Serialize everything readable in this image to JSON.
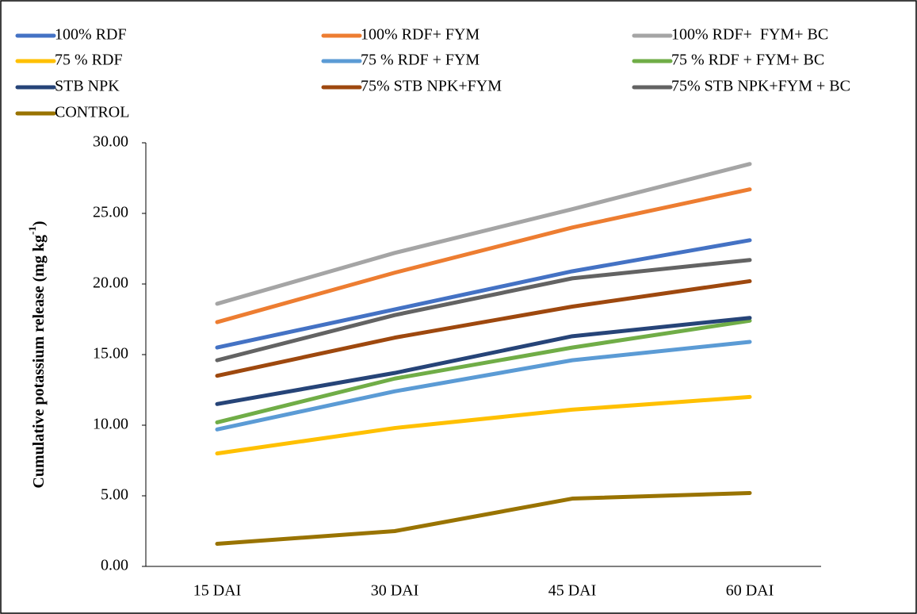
{
  "chart_data": {
    "type": "line",
    "y_label": {
      "text": "Cumulative potassium release (mg kg",
      "superscript": "-1",
      "close": ")"
    },
    "categories": [
      "15 DAI",
      "30 DAI",
      "45 DAI",
      "60 DAI"
    ],
    "series": [
      {
        "name": "100% RDF",
        "color": "#4472c4",
        "values": [
          15.5,
          18.2,
          20.9,
          23.1
        ]
      },
      {
        "name": "100% RDF+ FYM",
        "color": "#ed7d31",
        "values": [
          17.3,
          20.8,
          24.0,
          26.7
        ]
      },
      {
        "name": "100% RDF+  FYM+ BC",
        "color": "#a5a5a5",
        "values": [
          18.6,
          22.2,
          25.3,
          28.5
        ]
      },
      {
        "name": "75 % RDF",
        "color": "#ffc000",
        "values": [
          8.0,
          9.8,
          11.1,
          12.0
        ]
      },
      {
        "name": "75 % RDF + FYM",
        "color": "#5b9bd5",
        "values": [
          9.7,
          12.4,
          14.6,
          15.9
        ]
      },
      {
        "name": "75 % RDF + FYM+ BC",
        "color": "#70ad47",
        "values": [
          10.2,
          13.3,
          15.5,
          17.4
        ]
      },
      {
        "name": "STB NPK",
        "color": "#264478",
        "values": [
          11.5,
          13.7,
          16.3,
          17.6
        ]
      },
      {
        "name": "75% STB NPK+FYM",
        "color": "#9e480e",
        "values": [
          13.5,
          16.2,
          18.4,
          20.2
        ]
      },
      {
        "name": "75% STB NPK+FYM + BC",
        "color": "#636363",
        "values": [
          14.6,
          17.8,
          20.4,
          21.7
        ]
      },
      {
        "name": "CONTROL",
        "color": "#997300",
        "values": [
          1.6,
          2.5,
          4.8,
          5.2
        ]
      }
    ],
    "ylim": [
      0,
      30
    ],
    "yticks": [
      {
        "value": 0,
        "label": "0.00"
      },
      {
        "value": 5,
        "label": "5.00"
      },
      {
        "value": 10,
        "label": "10.00"
      },
      {
        "value": 15,
        "label": "15.00"
      },
      {
        "value": 20,
        "label": "20.00"
      },
      {
        "value": 25,
        "label": "25.00"
      },
      {
        "value": 30,
        "label": "30.00"
      }
    ],
    "grid": false,
    "legend": "top"
  }
}
